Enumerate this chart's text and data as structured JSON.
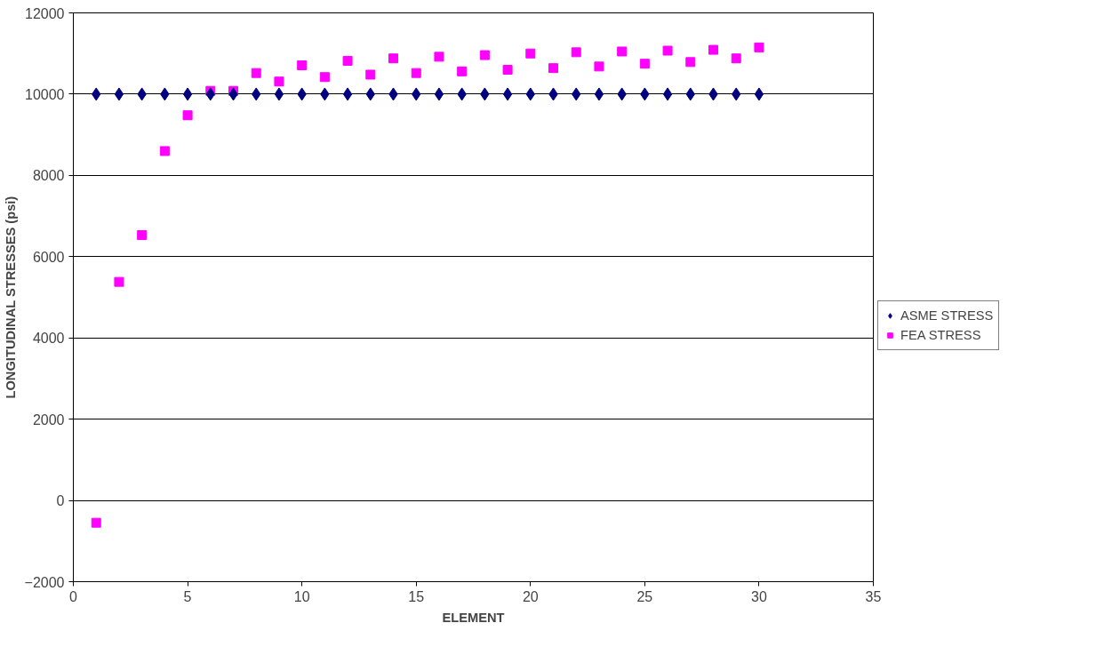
{
  "chart_data": {
    "type": "scatter",
    "xlabel": "ELEMENT",
    "ylabel": "LONGITUDINAL STRESSES (psi)",
    "x": [
      1,
      2,
      3,
      4,
      5,
      6,
      7,
      8,
      9,
      10,
      11,
      12,
      13,
      14,
      15,
      16,
      17,
      18,
      19,
      20,
      21,
      22,
      23,
      24,
      25,
      26,
      27,
      28,
      29,
      30
    ],
    "series": [
      {
        "name": "ASME STRESS",
        "color": "#000080",
        "marker": "diamond",
        "values": [
          10000,
          10000,
          10000,
          10000,
          10000,
          10000,
          10000,
          10000,
          10000,
          10000,
          10000,
          10000,
          10000,
          10000,
          10000,
          10000,
          10000,
          10000,
          10000,
          10000,
          10000,
          10000,
          10000,
          10000,
          10000,
          10000,
          10000,
          10000,
          10000,
          10000
        ]
      },
      {
        "name": "FEA STRESS",
        "color": "#ff00ff",
        "marker": "square",
        "values": [
          -550,
          5380,
          6530,
          8600,
          9480,
          10080,
          10080,
          10520,
          10310,
          10710,
          10420,
          10820,
          10480,
          10880,
          10520,
          10920,
          10560,
          10960,
          10600,
          11000,
          10640,
          11030,
          10680,
          11050,
          10750,
          11070,
          10790,
          11090,
          10880,
          11150
        ]
      }
    ],
    "xlim": [
      0,
      35
    ],
    "xticks": [
      0,
      5,
      10,
      15,
      20,
      25,
      30,
      35
    ],
    "ylim": [
      -2000,
      12000
    ],
    "yticks": [
      -2000,
      0,
      2000,
      4000,
      6000,
      8000,
      10000,
      12000
    ],
    "grid": "y",
    "legend": "right"
  }
}
